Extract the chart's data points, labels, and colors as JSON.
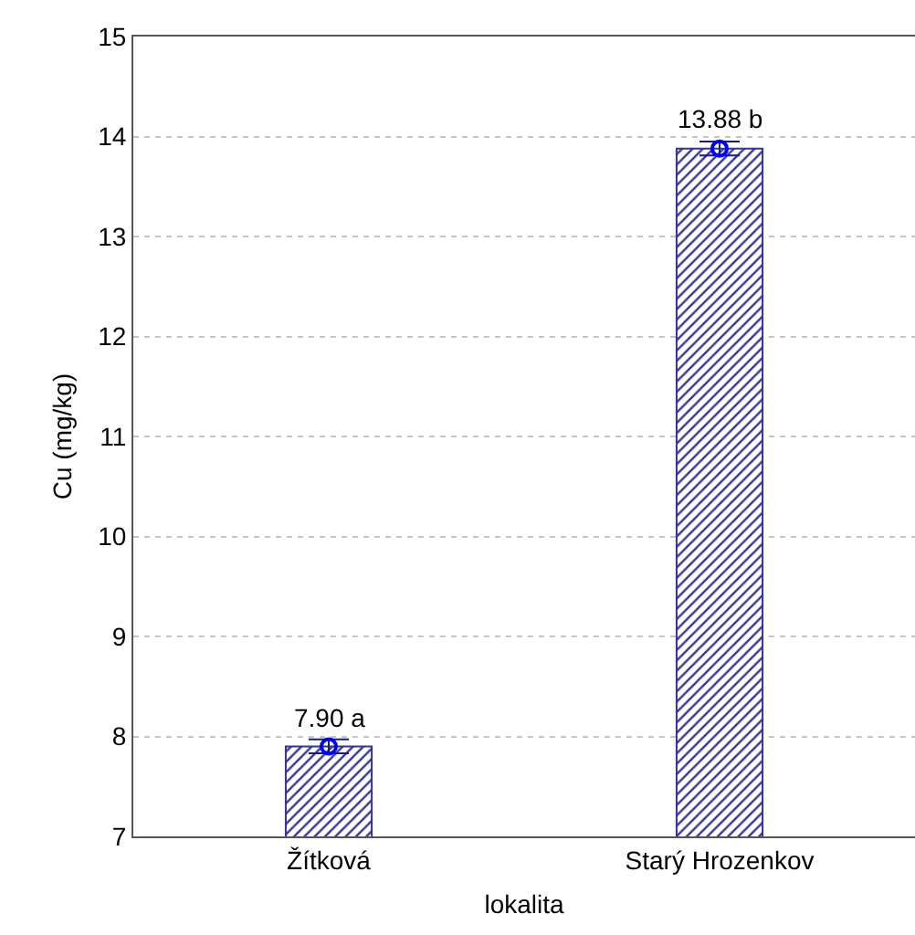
{
  "chart_data": {
    "type": "bar",
    "xlabel": "lokalita",
    "ylabel": "Cu (mg/kg)",
    "categories": [
      "Žítková",
      "Starý Hrozenkov"
    ],
    "series": [
      {
        "color": "#333399",
        "values": [
          7.9,
          13.88
        ],
        "value_labels": [
          "7.90 a",
          "13.88 b"
        ]
      },
      {
        "type": "scatter",
        "color": "#0000ff",
        "x": [
          "Žítková",
          "Starý Hrozenkov"
        ],
        "values": [
          7.9,
          13.88
        ],
        "errors": [
          0.07,
          0.07
        ]
      }
    ],
    "ylim": [
      7,
      15
    ],
    "yticks": [
      7,
      8,
      9,
      10,
      11,
      12,
      13,
      14,
      15
    ],
    "grid": "y",
    "marker": "circle"
  }
}
